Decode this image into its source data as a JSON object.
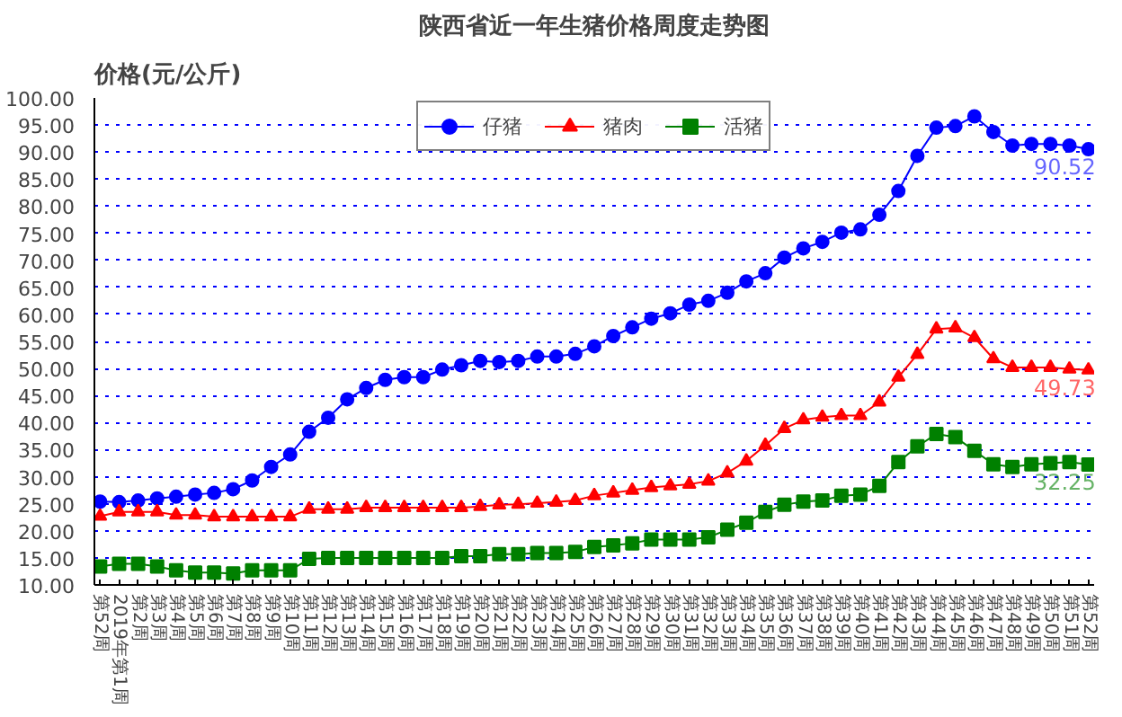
{
  "chart_data": {
    "type": "line",
    "title": "陕西省近一年生猪价格周度走势图",
    "ylabel": "价格(元/公斤)",
    "categories": [
      "第52周",
      "2019年第1周",
      "第2周",
      "第3周",
      "第4周",
      "第5周",
      "第6周",
      "第7周",
      "第8周",
      "第9周",
      "第10周",
      "第11周",
      "第12周",
      "第13周",
      "第14周",
      "第15周",
      "第16周",
      "第17周",
      "第18周",
      "第19周",
      "第20周",
      "第21周",
      "第22周",
      "第23周",
      "第24周",
      "第25周",
      "第26周",
      "第27周",
      "第28周",
      "第29周",
      "第30周",
      "第31周",
      "第32周",
      "第33周",
      "第34周",
      "第35周",
      "第36周",
      "第37周",
      "第38周",
      "第39周",
      "第40周",
      "第41周",
      "第42周",
      "第43周",
      "第44周",
      "第45周",
      "第46周",
      "第47周",
      "第48周",
      "第49周",
      "第50周",
      "第51周",
      "第52周"
    ],
    "series": [
      {
        "name": "仔猪",
        "color": "#0000ff",
        "marker": "circle",
        "values": [
          25.4,
          25.3,
          25.6,
          26.0,
          26.3,
          26.7,
          27.0,
          27.7,
          29.3,
          31.8,
          34.1,
          38.3,
          40.9,
          44.3,
          46.4,
          47.9,
          48.4,
          48.4,
          49.8,
          50.6,
          51.4,
          51.2,
          51.4,
          52.2,
          52.2,
          52.7,
          54.1,
          56.0,
          57.6,
          59.2,
          60.2,
          61.8,
          62.5,
          64.0,
          66.1,
          67.6,
          70.5,
          72.2,
          73.4,
          75.1,
          75.7,
          78.4,
          82.8,
          89.3,
          94.5,
          94.8,
          96.6,
          93.7,
          91.2,
          91.5,
          91.5,
          91.2,
          90.52
        ],
        "value_labels": [
          null,
          null,
          null,
          null,
          null,
          null,
          null,
          null,
          null,
          null,
          null,
          null,
          null,
          null,
          null,
          null,
          null,
          null,
          null,
          null,
          null,
          null,
          null,
          null,
          null,
          null,
          null,
          null,
          null,
          null,
          null,
          null,
          null,
          null,
          null,
          null,
          null,
          null,
          null,
          null,
          null,
          null,
          null,
          null,
          null,
          null,
          null,
          null,
          null,
          null,
          null,
          null,
          "90.52"
        ]
      },
      {
        "name": "猪肉",
        "color": "#ff0000",
        "marker": "triangle",
        "values": [
          22.7,
          23.5,
          23.5,
          23.5,
          22.9,
          22.9,
          22.6,
          22.6,
          22.6,
          22.6,
          22.6,
          24.0,
          24.0,
          24.0,
          24.3,
          24.3,
          24.3,
          24.3,
          24.3,
          24.3,
          24.5,
          24.8,
          24.9,
          25.1,
          25.3,
          25.6,
          26.5,
          27.0,
          27.5,
          28.0,
          28.3,
          28.6,
          29.2,
          30.7,
          32.9,
          35.8,
          38.9,
          40.5,
          41.0,
          41.3,
          41.3,
          43.8,
          48.4,
          52.6,
          57.3,
          57.5,
          55.7,
          51.8,
          50.2,
          50.2,
          50.2,
          49.9,
          49.73
        ],
        "value_labels": [
          null,
          null,
          null,
          null,
          null,
          null,
          null,
          null,
          null,
          null,
          null,
          null,
          null,
          null,
          null,
          null,
          null,
          null,
          null,
          null,
          null,
          null,
          null,
          null,
          null,
          null,
          null,
          null,
          null,
          null,
          null,
          null,
          null,
          null,
          null,
          null,
          null,
          null,
          null,
          null,
          null,
          null,
          null,
          null,
          null,
          null,
          null,
          null,
          null,
          null,
          null,
          null,
          "49.73"
        ]
      },
      {
        "name": "活猪",
        "color": "#008000",
        "marker": "square",
        "values": [
          13.4,
          13.9,
          13.9,
          13.4,
          12.7,
          12.3,
          12.3,
          12.1,
          12.7,
          12.7,
          12.7,
          14.8,
          15.0,
          15.0,
          15.0,
          15.0,
          15.0,
          15.0,
          15.0,
          15.3,
          15.3,
          15.7,
          15.7,
          15.9,
          15.9,
          16.1,
          17.0,
          17.3,
          17.7,
          18.4,
          18.4,
          18.4,
          18.8,
          20.2,
          21.5,
          23.5,
          24.8,
          25.4,
          25.6,
          26.5,
          26.7,
          28.3,
          32.7,
          35.6,
          37.9,
          37.3,
          34.8,
          32.3,
          31.8,
          32.3,
          32.5,
          32.7,
          32.25
        ],
        "value_labels": [
          null,
          null,
          null,
          null,
          null,
          null,
          null,
          null,
          null,
          null,
          null,
          null,
          null,
          null,
          null,
          null,
          null,
          null,
          null,
          null,
          null,
          null,
          null,
          null,
          null,
          null,
          null,
          null,
          null,
          null,
          null,
          null,
          null,
          null,
          null,
          null,
          null,
          null,
          null,
          null,
          null,
          null,
          null,
          null,
          null,
          null,
          null,
          null,
          null,
          null,
          null,
          null,
          "32.25"
        ]
      }
    ],
    "ylim": [
      10,
      100
    ],
    "yticks": [
      {
        "value": 10,
        "label": "10.00"
      },
      {
        "value": 15,
        "label": "15.00"
      },
      {
        "value": 20,
        "label": "20.00"
      },
      {
        "value": 25,
        "label": "25.00"
      },
      {
        "value": 30,
        "label": "30.00"
      },
      {
        "value": 35,
        "label": "35.00"
      },
      {
        "value": 40,
        "label": "40.00"
      },
      {
        "value": 45,
        "label": "45.00"
      },
      {
        "value": 50,
        "label": "50.00"
      },
      {
        "value": 55,
        "label": "55.00"
      },
      {
        "value": 60,
        "label": "60.00"
      },
      {
        "value": 65,
        "label": "65.00"
      },
      {
        "value": 70,
        "label": "70.00"
      },
      {
        "value": 75,
        "label": "75.00"
      },
      {
        "value": 80,
        "label": "80.00"
      },
      {
        "value": 85,
        "label": "85.00"
      },
      {
        "value": 90,
        "label": "90.00"
      },
      {
        "value": 95,
        "label": "95.00"
      },
      {
        "value": 100,
        "label": "100.00"
      }
    ],
    "grid": "y",
    "legend": "top",
    "line_style": "solid"
  }
}
